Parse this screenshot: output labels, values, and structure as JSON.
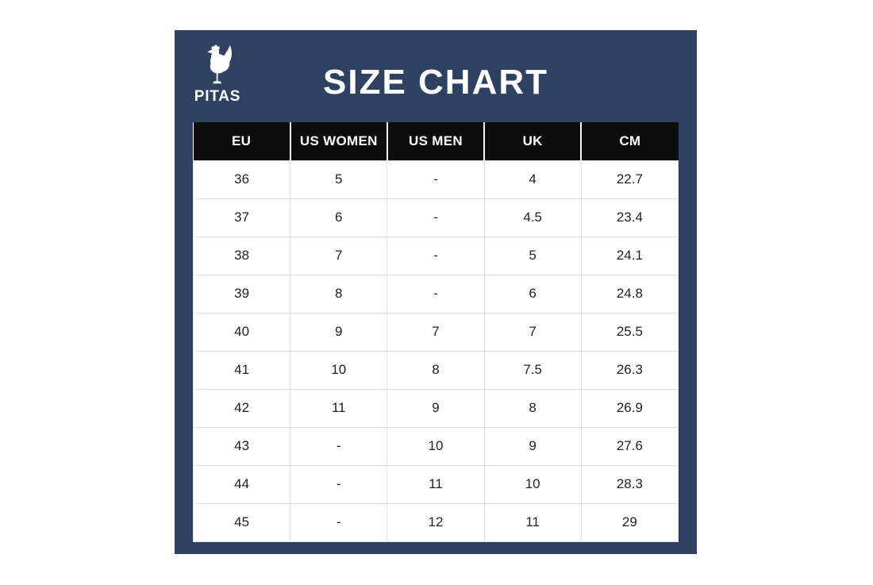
{
  "brand": {
    "name": "PITAS"
  },
  "title": "SIZE CHART",
  "icons": {
    "logo": "rooster-icon"
  },
  "colors": {
    "panel_navy": "#2e4160",
    "header_black": "#0d0d0d",
    "grid_line": "#e3e3e3",
    "cell_text": "#222222",
    "title_white": "#ffffff"
  },
  "chart_data": {
    "type": "table",
    "title": "SIZE CHART",
    "columns": [
      "EU",
      "US WOMEN",
      "US MEN",
      "UK",
      "CM"
    ],
    "rows": [
      [
        "36",
        "5",
        "-",
        "4",
        "22.7"
      ],
      [
        "37",
        "6",
        "-",
        "4.5",
        "23.4"
      ],
      [
        "38",
        "7",
        "-",
        "5",
        "24.1"
      ],
      [
        "39",
        "8",
        "-",
        "6",
        "24.8"
      ],
      [
        "40",
        "9",
        "7",
        "7",
        "25.5"
      ],
      [
        "41",
        "10",
        "8",
        "7.5",
        "26.3"
      ],
      [
        "42",
        "11",
        "9",
        "8",
        "26.9"
      ],
      [
        "43",
        "-",
        "10",
        "9",
        "27.6"
      ],
      [
        "44",
        "-",
        "11",
        "10",
        "28.3"
      ],
      [
        "45",
        "-",
        "12",
        "11",
        "29"
      ]
    ],
    "layout": {
      "header_style": "black-on-white-table",
      "grid": true
    }
  }
}
